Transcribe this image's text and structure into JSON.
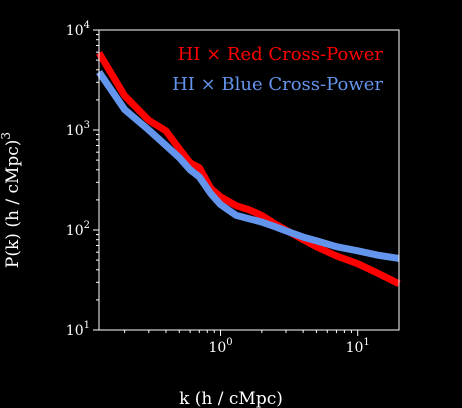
{
  "chart_data": {
    "type": "line",
    "xlabel": "k (h / cMpc)",
    "ylabel": "P(k) (h / cMpc)",
    "ylabel_exp": "3",
    "xscale": "log",
    "yscale": "log",
    "xlim": [
      0.13,
      20
    ],
    "ylim": [
      10,
      10000
    ],
    "legend_position": "top-right",
    "grid": false,
    "x_ticks": [
      {
        "value": 1,
        "base": "10",
        "exp": "0"
      },
      {
        "value": 10,
        "base": "10",
        "exp": "1"
      }
    ],
    "y_ticks": [
      {
        "value": 10,
        "base": "10",
        "exp": "1"
      },
      {
        "value": 100,
        "base": "10",
        "exp": "2"
      },
      {
        "value": 1000,
        "base": "10",
        "exp": "3"
      },
      {
        "value": 10000,
        "base": "10",
        "exp": "4"
      }
    ],
    "series": [
      {
        "name": "HI × Red Cross-Power",
        "color": "#ff0000",
        "x": [
          0.13,
          0.2,
          0.3,
          0.4,
          0.5,
          0.6,
          0.7,
          0.85,
          1.0,
          1.3,
          1.6,
          2.0,
          2.5,
          3.0,
          4.0,
          5.0,
          7.0,
          10.0,
          14.0,
          20.0
        ],
        "y": [
          5900,
          2200,
          1250,
          980,
          650,
          470,
          420,
          260,
          215,
          175,
          160,
          140,
          115,
          100,
          80,
          68,
          55,
          46,
          37,
          29
        ]
      },
      {
        "name": "HI × Blue Cross-Power",
        "color": "#6495ed",
        "x": [
          0.13,
          0.2,
          0.3,
          0.4,
          0.5,
          0.6,
          0.7,
          0.85,
          1.0,
          1.3,
          1.6,
          2.0,
          2.5,
          3.0,
          4.0,
          5.0,
          7.0,
          10.0,
          14.0,
          20.0
        ],
        "y": [
          3800,
          1600,
          1000,
          700,
          530,
          400,
          340,
          230,
          180,
          140,
          130,
          120,
          108,
          98,
          85,
          78,
          68,
          62,
          56,
          52
        ]
      }
    ]
  }
}
